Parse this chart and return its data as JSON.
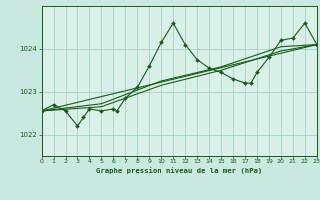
{
  "title": "Graphe pression niveau de la mer (hPa)",
  "bg_color": "#c8e8e0",
  "plot_bg_color": "#d8f0e8",
  "line_color": "#1a5c1a",
  "grid_color": "#a0ccc0",
  "xlim": [
    0,
    23
  ],
  "ylim": [
    1021.5,
    1025.0
  ],
  "yticks": [
    1022,
    1023,
    1024
  ],
  "xticks": [
    0,
    1,
    2,
    3,
    4,
    5,
    6,
    7,
    8,
    9,
    10,
    11,
    12,
    13,
    14,
    15,
    16,
    17,
    18,
    19,
    20,
    21,
    22,
    23
  ],
  "series_main": [
    [
      0,
      1022.55
    ],
    [
      1,
      1022.7
    ],
    [
      2,
      1022.55
    ],
    [
      3,
      1022.2
    ],
    [
      3.5,
      1022.4
    ],
    [
      4,
      1022.6
    ],
    [
      5,
      1022.55
    ],
    [
      6,
      1022.6
    ],
    [
      6.3,
      1022.55
    ],
    [
      7,
      1022.85
    ],
    [
      8,
      1023.1
    ],
    [
      9,
      1023.6
    ],
    [
      10,
      1024.15
    ],
    [
      11,
      1024.6
    ],
    [
      12,
      1024.1
    ],
    [
      13,
      1023.75
    ],
    [
      14,
      1023.55
    ],
    [
      15,
      1023.45
    ],
    [
      16,
      1023.3
    ],
    [
      17,
      1023.2
    ],
    [
      17.5,
      1023.2
    ],
    [
      18,
      1023.45
    ],
    [
      19,
      1023.8
    ],
    [
      20,
      1024.2
    ],
    [
      21,
      1024.25
    ],
    [
      22,
      1024.6
    ],
    [
      23,
      1024.1
    ]
  ],
  "series_line2": [
    [
      0,
      1022.55
    ],
    [
      23,
      1024.1
    ]
  ],
  "series_line3": [
    [
      0,
      1022.55
    ],
    [
      5,
      1022.65
    ],
    [
      10,
      1023.15
    ],
    [
      15,
      1023.5
    ],
    [
      20,
      1023.95
    ],
    [
      23,
      1024.1
    ]
  ],
  "series_line4": [
    [
      0,
      1022.55
    ],
    [
      5,
      1022.72
    ],
    [
      10,
      1023.25
    ],
    [
      15,
      1023.58
    ],
    [
      20,
      1024.05
    ],
    [
      23,
      1024.1
    ]
  ]
}
